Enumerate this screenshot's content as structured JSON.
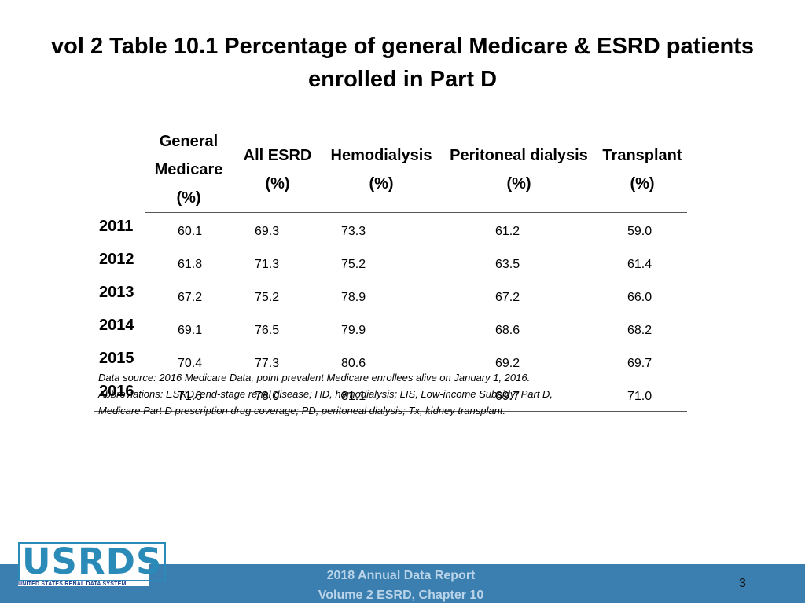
{
  "title": "vol 2 Table 10.1 Percentage of general Medicare & ESRD patients enrolled in Part D",
  "table": {
    "headers": [
      [
        "General",
        "Medicare",
        "(%)"
      ],
      [
        "All ESRD",
        "(%)"
      ],
      [
        "Hemodialysis",
        "(%)"
      ],
      [
        "Peritoneal dialysis",
        "(%)"
      ],
      [
        "Transplant",
        "(%)"
      ]
    ],
    "rows": [
      {
        "year": "2011",
        "values": [
          "60.1",
          "69.3",
          "73.3",
          "61.2",
          "59.0"
        ]
      },
      {
        "year": "2012",
        "values": [
          "61.8",
          "71.3",
          "75.2",
          "63.5",
          "61.4"
        ]
      },
      {
        "year": "2013",
        "values": [
          "67.2",
          "75.2",
          "78.9",
          "67.2",
          "66.0"
        ]
      },
      {
        "year": "2014",
        "values": [
          "69.1",
          "76.5",
          "79.9",
          "68.6",
          "68.2"
        ]
      },
      {
        "year": "2015",
        "values": [
          "70.4",
          "77.3",
          "80.6",
          "69.2",
          "69.7"
        ]
      },
      {
        "year": "2016",
        "values": [
          "71.6",
          "78.0",
          "81.1",
          "69.7",
          "71.0"
        ]
      }
    ]
  },
  "note": [
    "Data source: 2016 Medicare Data, point prevalent Medicare enrollees alive on January 1, 2016.",
    "Abbreviations: ESRD, end-stage renal disease; HD, hemodialysis; LIS, Low-income Subsidy; Part D,",
    "Medicare Part D prescription drug coverage; PD, peritoneal dialysis; Tx, kidney transplant."
  ],
  "logo": {
    "main": "USRDS",
    "sub": "UNITED STATES RENAL DATA SYSTEM"
  },
  "footer": {
    "line1": "2018 Annual Data Report",
    "line2": "Volume 2 ESRD, Chapter 10",
    "page": "3"
  },
  "colors": {
    "footer_bar": "#3a7fb0",
    "logo": "#2a8ab8"
  }
}
